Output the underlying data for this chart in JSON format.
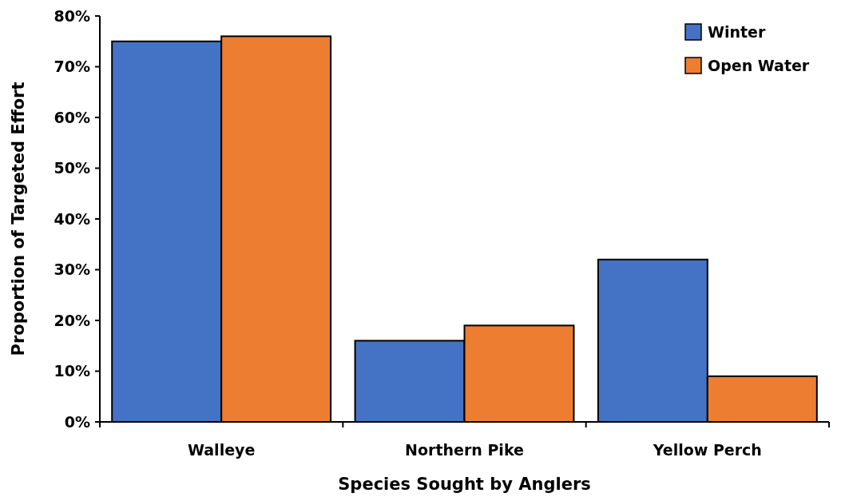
{
  "chart_data": {
    "type": "bar",
    "xlabel": "Species Sought by Anglers",
    "ylabel": "Proportion of Targeted Effort",
    "categories": [
      "Walleye",
      "Northern Pike",
      "Yellow Perch"
    ],
    "series": [
      {
        "name": "Winter",
        "color": "#4472c4",
        "values": [
          75,
          16,
          32
        ]
      },
      {
        "name": "Open Water",
        "color": "#ed7d31",
        "values": [
          76,
          19,
          9
        ]
      }
    ],
    "ylim": [
      0,
      80
    ],
    "yticks": [
      {
        "value": 0,
        "label": "0%"
      },
      {
        "value": 10,
        "label": "10%"
      },
      {
        "value": 20,
        "label": "20%"
      },
      {
        "value": 30,
        "label": "30%"
      },
      {
        "value": 40,
        "label": "40%"
      },
      {
        "value": 50,
        "label": "50%"
      },
      {
        "value": 60,
        "label": "60%"
      },
      {
        "value": 70,
        "label": "70%"
      },
      {
        "value": 80,
        "label": "80%"
      }
    ],
    "grid": false,
    "legend": "top right"
  }
}
